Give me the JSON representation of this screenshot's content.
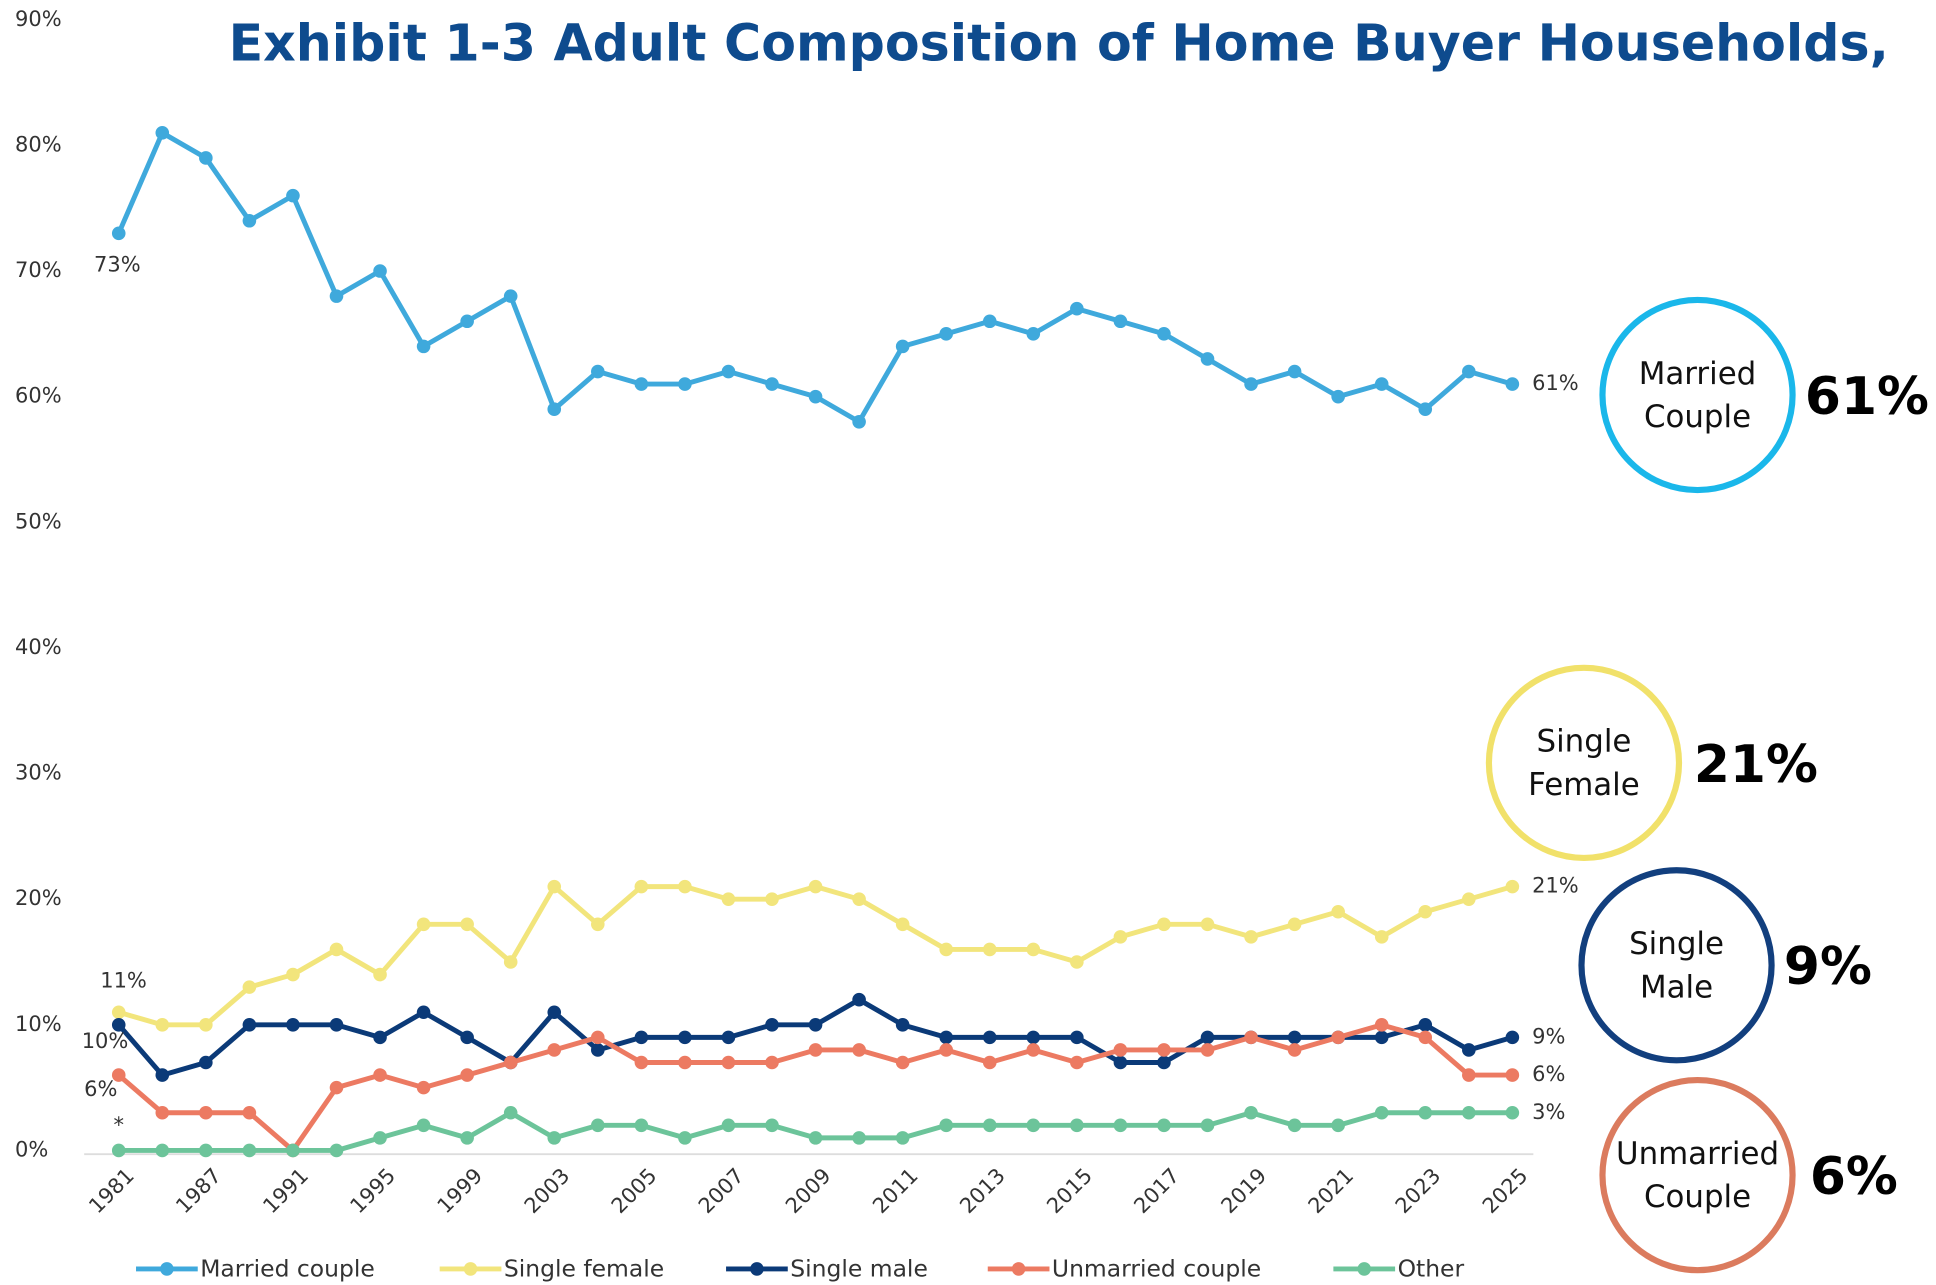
{
  "chart_data": {
    "type": "line",
    "title": "Exhibit 1-3 Adult Composition of Home Buyer Households, ",
    "categories": [
      "1981",
      null,
      "1987",
      null,
      "1991",
      null,
      "1995",
      null,
      "1999",
      null,
      "2003",
      null,
      "2005",
      null,
      "2007",
      null,
      "2009",
      null,
      "2011",
      null,
      "2013",
      null,
      "2015",
      null,
      "2017",
      null,
      "2019",
      null,
      "2021",
      null,
      "2023",
      null,
      "2025"
    ],
    "ylim": [
      0,
      90
    ],
    "yticks": [
      {
        "value": 0,
        "label": "0%"
      },
      {
        "value": 10,
        "label": "10%"
      },
      {
        "value": 20,
        "label": "20%"
      },
      {
        "value": 30,
        "label": "30%"
      },
      {
        "value": 40,
        "label": "40%"
      },
      {
        "value": 50,
        "label": "50%"
      },
      {
        "value": 60,
        "label": "60%"
      },
      {
        "value": 70,
        "label": "70%"
      },
      {
        "value": 80,
        "label": "80%"
      },
      {
        "value": 90,
        "label": "90%"
      }
    ],
    "grid": false,
    "legend": "bottom",
    "series": [
      {
        "name": "Married couple",
        "color": "#3fa9dc",
        "values": [
          73,
          81,
          79,
          74,
          76,
          68,
          70,
          64,
          66,
          68,
          59,
          62,
          61,
          61,
          62,
          61,
          60,
          58,
          64,
          65,
          66,
          65,
          67,
          66,
          65,
          63,
          61,
          62,
          60,
          61,
          59,
          62,
          61
        ],
        "value_labels": [
          "73%",
          null,
          null,
          null,
          null,
          null,
          null,
          null,
          null,
          null,
          null,
          null,
          null,
          null,
          null,
          null,
          null,
          null,
          null,
          null,
          null,
          null,
          null,
          null,
          null,
          null,
          null,
          null,
          null,
          null,
          null,
          null,
          "61%"
        ]
      },
      {
        "name": "Single female",
        "color": "#f2e57c",
        "values": [
          11,
          10,
          10,
          13,
          14,
          16,
          14,
          18,
          18,
          15,
          21,
          18,
          21,
          21,
          20,
          20,
          21,
          20,
          18,
          16,
          16,
          16,
          15,
          17,
          18,
          18,
          17,
          18,
          19,
          17,
          19,
          20,
          21
        ],
        "value_labels": [
          "11%",
          null,
          null,
          null,
          null,
          null,
          null,
          null,
          null,
          null,
          null,
          null,
          null,
          null,
          null,
          null,
          null,
          null,
          null,
          null,
          null,
          null,
          null,
          null,
          null,
          null,
          null,
          null,
          null,
          null,
          null,
          null,
          "21%"
        ]
      },
      {
        "name": "Single male",
        "color": "#0b3a78",
        "values": [
          10,
          6,
          7,
          10,
          10,
          10,
          9,
          11,
          9,
          7,
          11,
          8,
          9,
          9,
          9,
          10,
          10,
          12,
          10,
          9,
          9,
          9,
          9,
          7,
          7,
          9,
          9,
          9,
          9,
          9,
          10,
          8,
          9
        ],
        "value_labels": [
          "10%",
          null,
          null,
          null,
          null,
          null,
          null,
          null,
          null,
          null,
          null,
          null,
          null,
          null,
          null,
          null,
          null,
          null,
          null,
          null,
          null,
          null,
          null,
          null,
          null,
          null,
          null,
          null,
          null,
          null,
          null,
          null,
          "9%"
        ]
      },
      {
        "name": "Unmarried couple",
        "color": "#ec7a62",
        "values": [
          6,
          3,
          3,
          3,
          0,
          5,
          6,
          5,
          6,
          7,
          8,
          9,
          7,
          7,
          7,
          7,
          8,
          8,
          7,
          8,
          7,
          8,
          7,
          8,
          8,
          8,
          9,
          8,
          9,
          10,
          9,
          6,
          6
        ],
        "value_labels": [
          "6%",
          null,
          null,
          null,
          null,
          null,
          null,
          null,
          null,
          null,
          null,
          null,
          null,
          null,
          null,
          null,
          null,
          null,
          null,
          null,
          null,
          null,
          null,
          null,
          null,
          null,
          null,
          null,
          null,
          null,
          null,
          null,
          "6%"
        ]
      },
      {
        "name": "Other",
        "color": "#6cc49a",
        "values": [
          0,
          0,
          0,
          0,
          0,
          0,
          1,
          2,
          1,
          3,
          1,
          2,
          2,
          1,
          2,
          2,
          1,
          1,
          1,
          2,
          2,
          2,
          2,
          2,
          2,
          2,
          3,
          2,
          2,
          3,
          3,
          3,
          3
        ],
        "value_labels": [
          null,
          null,
          null,
          null,
          null,
          null,
          null,
          null,
          null,
          null,
          null,
          null,
          null,
          null,
          null,
          null,
          null,
          null,
          null,
          null,
          null,
          null,
          null,
          null,
          null,
          null,
          null,
          null,
          null,
          null,
          null,
          null,
          "3%"
        ]
      }
    ],
    "annotations": [
      "*"
    ],
    "callouts": [
      {
        "label": "Married Couple",
        "value_label": "61%",
        "color": "#1ab7ea"
      },
      {
        "label": "Single Female",
        "value_label": "21%",
        "color": "#f1e16a"
      },
      {
        "label": "Single Male",
        "value_label": "9%",
        "color": "#123f7e"
      },
      {
        "label": "Unmarried Couple",
        "value_label": "6%",
        "color": "#db7b5e"
      }
    ]
  }
}
